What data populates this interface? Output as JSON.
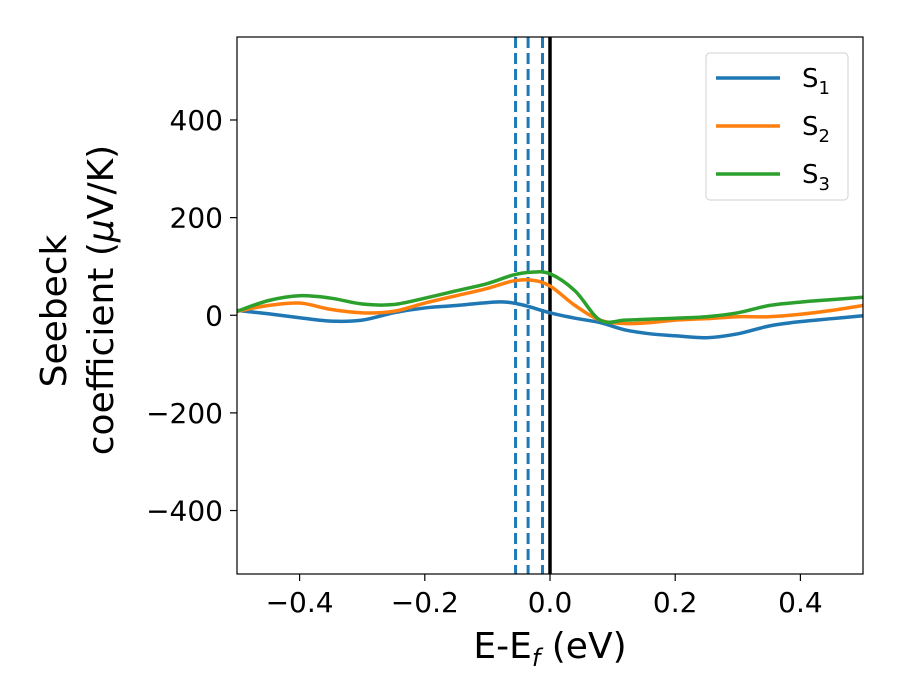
{
  "chart_data": {
    "type": "line",
    "xlabel": "E-E",
    "xlabel_sub": "f",
    "xlabel_unit": " (eV)",
    "ylabel_line1": "Seebeck",
    "ylabel_line2": "coefficient  (",
    "ylabel_mu": "μ",
    "ylabel_unit": "V/K)",
    "xlim": [
      -0.5,
      0.5
    ],
    "ylim": [
      -530,
      570
    ],
    "xticks": [
      -0.4,
      -0.2,
      0.0,
      0.2,
      0.4
    ],
    "xtick_labels": [
      "−0.4",
      "−0.2",
      "0.0",
      "0.2",
      "0.4"
    ],
    "yticks": [
      -400,
      -200,
      0,
      200,
      400
    ],
    "ytick_labels": [
      "−400",
      "−200",
      "0",
      "200",
      "400"
    ],
    "grid": false,
    "legend_position": "top-right",
    "vertical_lines": [
      {
        "x": -0.055,
        "style": "dashed",
        "color": "#1f77b4"
      },
      {
        "x": -0.035,
        "style": "dashed",
        "color": "#1f77b4"
      },
      {
        "x": -0.012,
        "style": "dashed",
        "color": "#1f77b4"
      },
      {
        "x": 0.0,
        "style": "solid",
        "color": "#000000"
      }
    ],
    "series": [
      {
        "name": "S",
        "sub": "1",
        "color": "#1f77b4",
        "x": [
          -0.5,
          -0.45,
          -0.4,
          -0.35,
          -0.3,
          -0.25,
          -0.2,
          -0.15,
          -0.1,
          -0.07,
          -0.04,
          0.0,
          0.04,
          0.08,
          0.12,
          0.16,
          0.2,
          0.25,
          0.3,
          0.35,
          0.4,
          0.45,
          0.5
        ],
        "y": [
          10,
          3,
          -5,
          -12,
          -10,
          5,
          15,
          20,
          26,
          27,
          20,
          5,
          -6,
          -15,
          -30,
          -38,
          -42,
          -46,
          -38,
          -22,
          -13,
          -7,
          -1
        ]
      },
      {
        "name": "S",
        "sub": "2",
        "color": "#ff7f0e",
        "x": [
          -0.5,
          -0.45,
          -0.4,
          -0.35,
          -0.3,
          -0.25,
          -0.2,
          -0.15,
          -0.1,
          -0.06,
          -0.03,
          0.0,
          0.04,
          0.08,
          0.12,
          0.16,
          0.2,
          0.25,
          0.3,
          0.35,
          0.4,
          0.45,
          0.5
        ],
        "y": [
          8,
          20,
          25,
          12,
          5,
          8,
          25,
          40,
          55,
          70,
          72,
          60,
          20,
          -10,
          -17,
          -15,
          -10,
          -7,
          -3,
          -3,
          2,
          10,
          20
        ]
      },
      {
        "name": "S",
        "sub": "3",
        "color": "#2ca02c",
        "x": [
          -0.5,
          -0.45,
          -0.4,
          -0.35,
          -0.3,
          -0.25,
          -0.2,
          -0.15,
          -0.1,
          -0.06,
          -0.03,
          0.0,
          0.04,
          0.08,
          0.12,
          0.16,
          0.2,
          0.25,
          0.3,
          0.35,
          0.4,
          0.45,
          0.5
        ],
        "y": [
          8,
          30,
          40,
          35,
          23,
          22,
          35,
          50,
          65,
          82,
          88,
          85,
          50,
          -10,
          -10,
          -8,
          -6,
          -3,
          5,
          20,
          27,
          32,
          37
        ]
      }
    ]
  }
}
